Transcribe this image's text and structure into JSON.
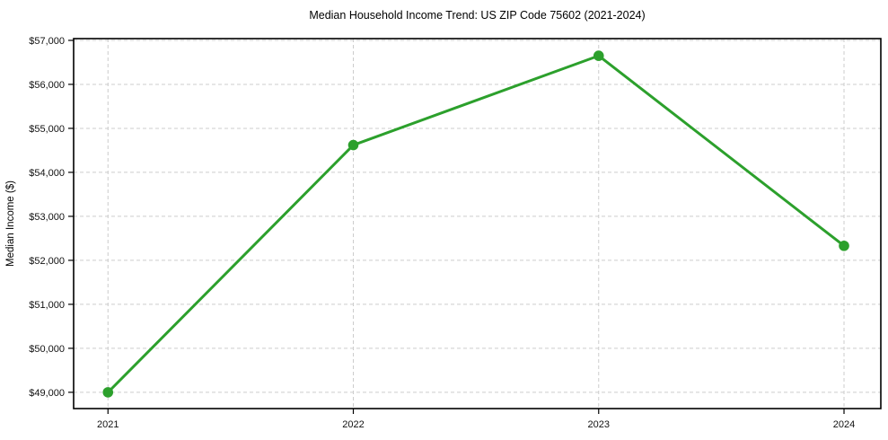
{
  "chart_data": {
    "type": "line",
    "title": "Median Household Income Trend: US ZIP Code 75602 (2021-2024)",
    "xlabel": "",
    "ylabel": "Median Income ($)",
    "x": [
      2021,
      2022,
      2023,
      2024
    ],
    "values": [
      49000,
      54620,
      56650,
      52330
    ],
    "x_tick_labels": [
      "2021",
      "2022",
      "2023",
      "2024"
    ],
    "y_ticks": [
      49000,
      50000,
      51000,
      52000,
      53000,
      54000,
      55000,
      56000,
      57000
    ],
    "y_tick_labels": [
      "$49,000",
      "$50,000",
      "$51,000",
      "$52,000",
      "$53,000",
      "$54,000",
      "$55,000",
      "$56,000",
      "$57,000"
    ],
    "xlim": [
      2020.86,
      2024.15
    ],
    "ylim": [
      48630,
      57040
    ],
    "grid": true,
    "grid_style": "dashed",
    "legend_position": "none",
    "line_color": "#2ca02c",
    "marker": "circle",
    "marker_color": "#2ca02c",
    "grid_color": "#cccccc",
    "axis_color": "#000000",
    "tick_label_color": "#111111",
    "background_color": "#ffffff"
  }
}
